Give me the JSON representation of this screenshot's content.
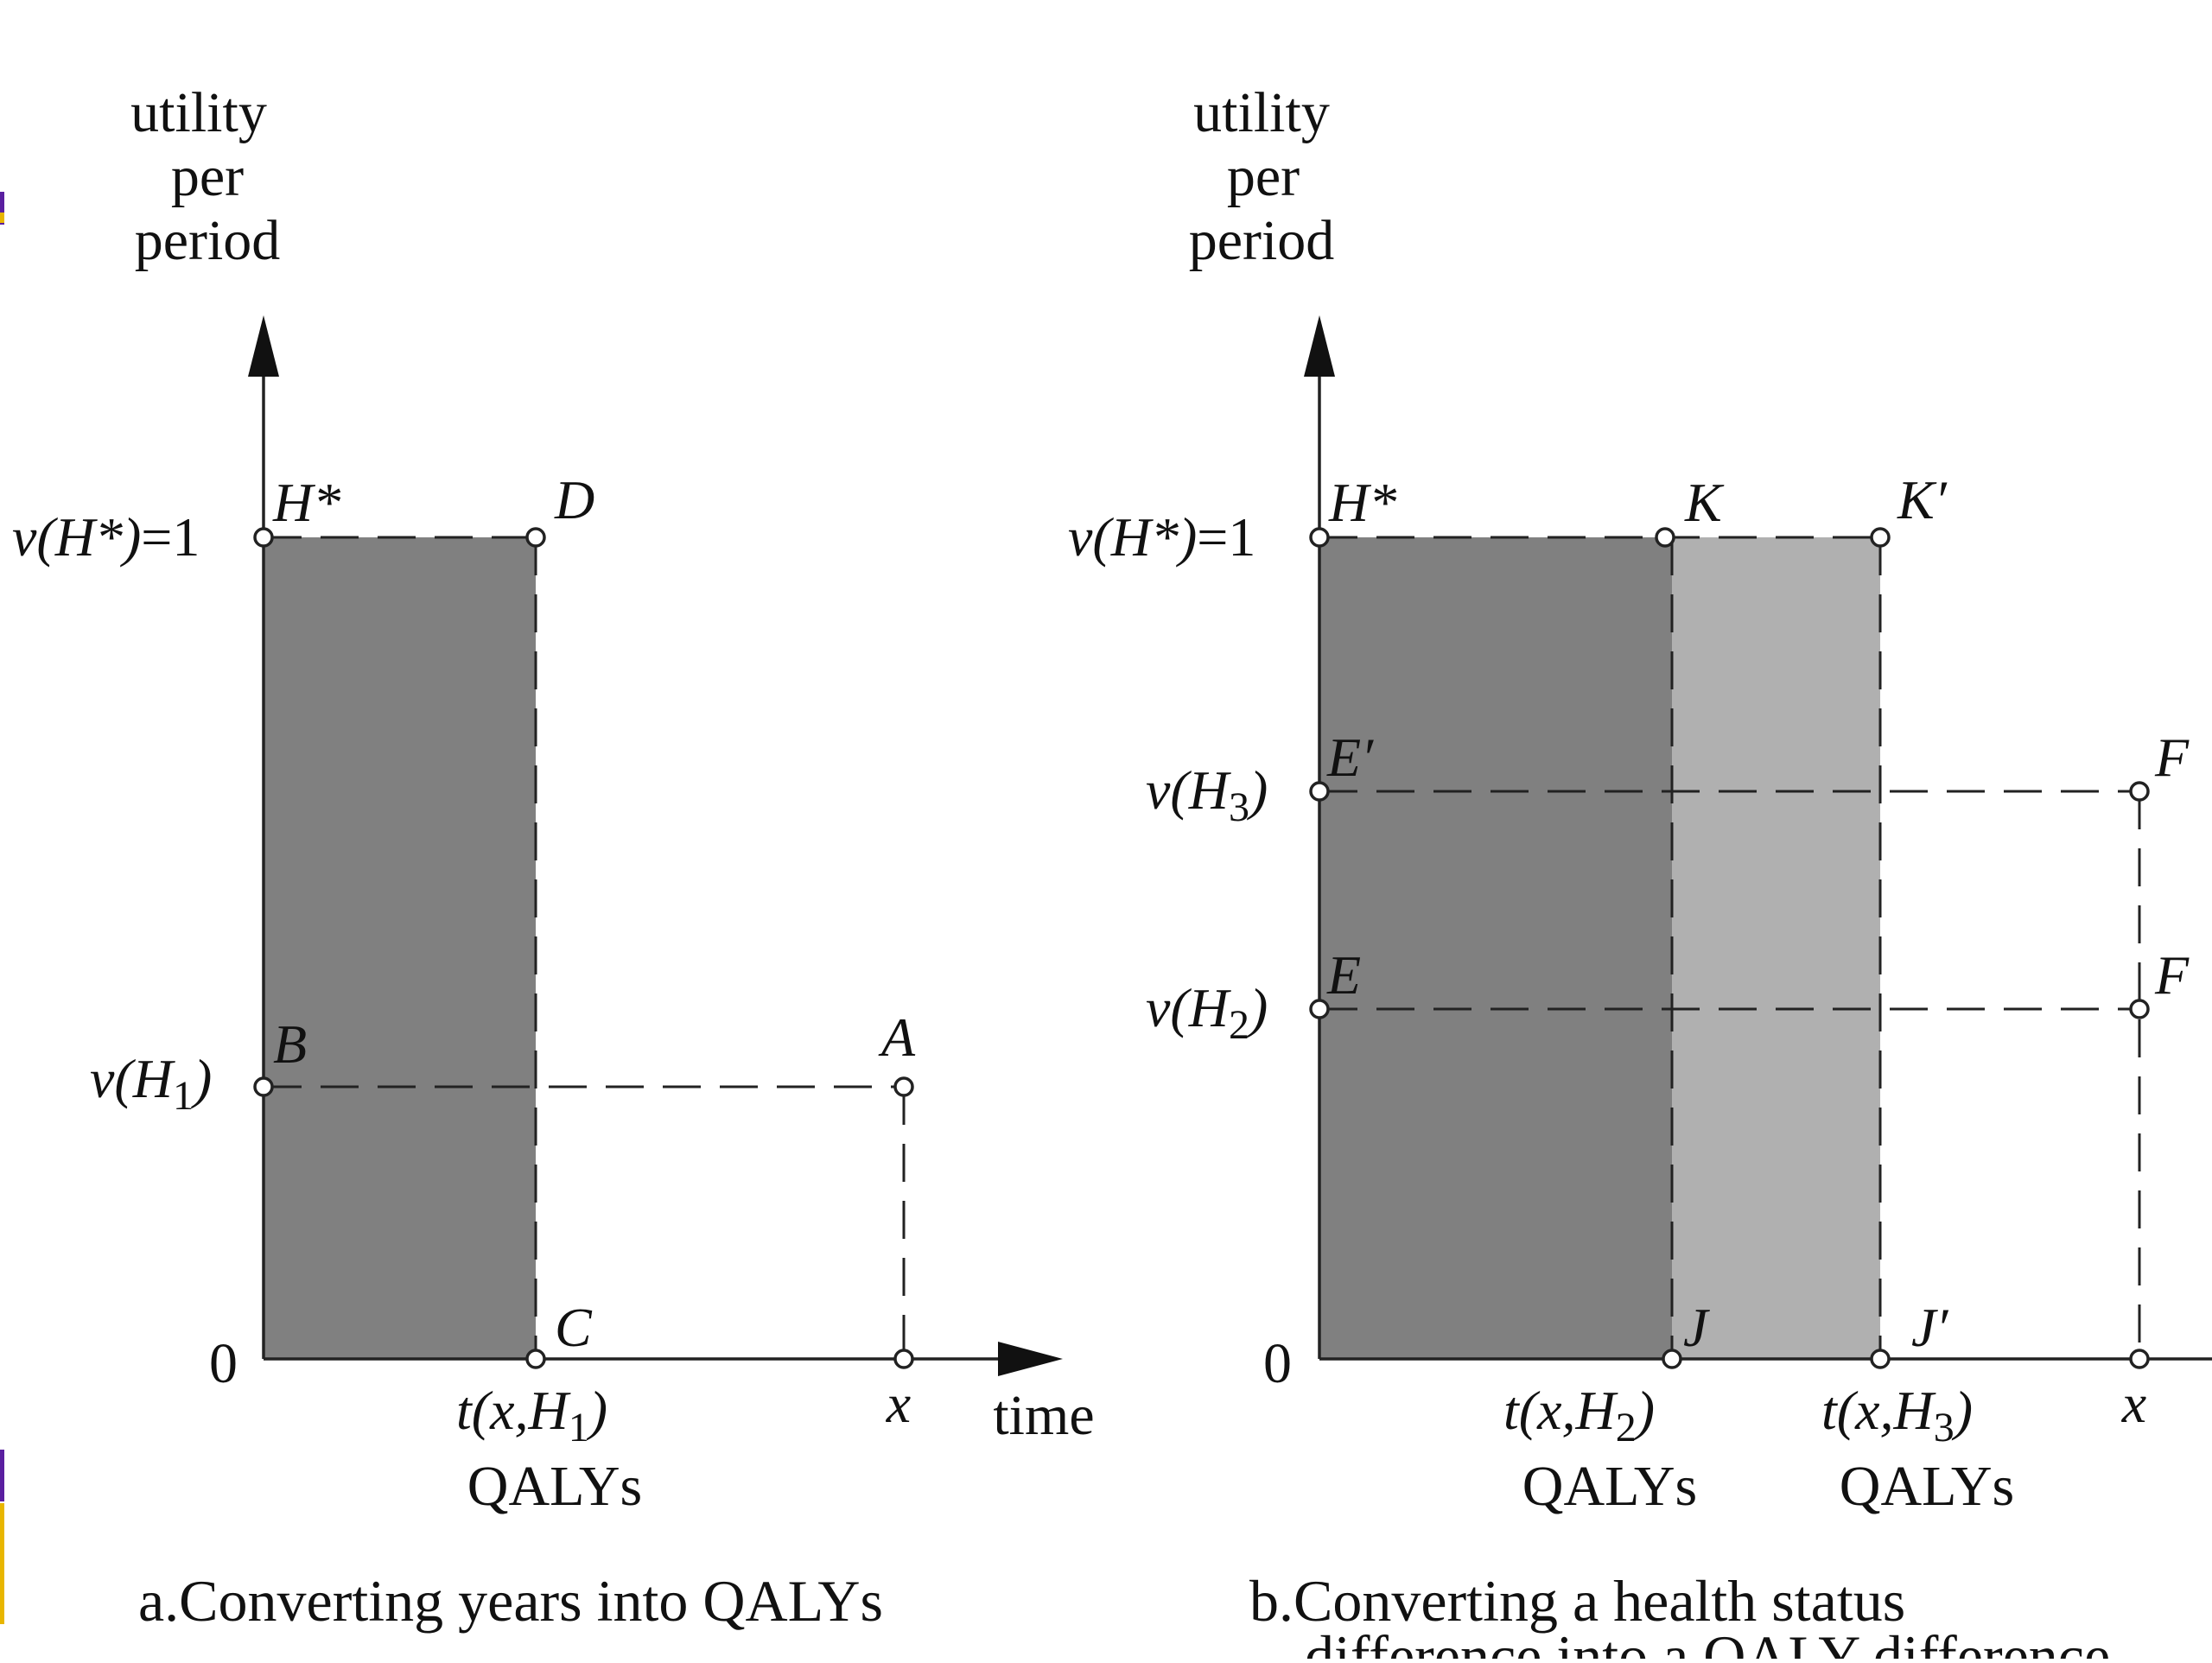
{
  "panel_a": {
    "y_axis_title": [
      "utility",
      "per",
      "period"
    ],
    "tick_top": "=1",
    "tick_zero": "0",
    "points": {
      "hstar": "H*",
      "d": "D",
      "b": "B",
      "a": "A",
      "c": "C"
    },
    "x_labels": {
      "x": "x",
      "time": "time",
      "qalys": "QALYs"
    },
    "caption": "a.Converting years into QALYs"
  },
  "panel_b": {
    "y_axis_title": [
      "utility",
      "per",
      "period"
    ],
    "tick_top": "=1",
    "tick_zero": "0",
    "points": {
      "hstar": "H*",
      "k": "K",
      "k_prime": "K′",
      "e_prime": "E′",
      "e": "E",
      "f_upper": "F",
      "f_lower": "F",
      "j": "J",
      "j_prime": "J′"
    },
    "x_labels": {
      "x": "x",
      "qalys_1": "QALYs",
      "qalys_2": "QALYs"
    },
    "caption_line1": "b.Converting a health status",
    "caption_line2": "difference into a QALY difference"
  },
  "colors": {
    "dark_fill": "#808080",
    "light_fill": "#b0b0b0",
    "edge_accent": "#5a1fa0",
    "edge_accent_2": "#e8b600"
  }
}
